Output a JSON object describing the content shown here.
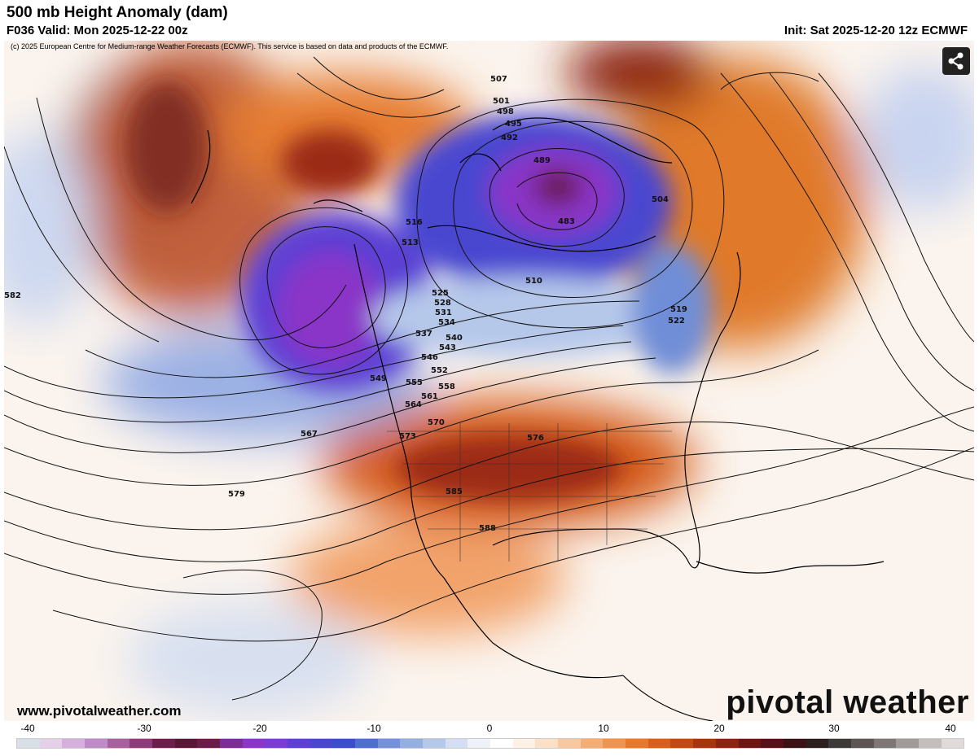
{
  "header": {
    "title": "500 mb Height Anomaly (dam)",
    "valid": "F036 Valid: Mon 2025-12-22 00z",
    "init": "Init: Sat 2025-12-20 12z ECMWF"
  },
  "map": {
    "copyright": "(c) 2025 European Centre for Medium-range Weather Forecasts (ECMWF). This service is based on data and products of the ECMWF.",
    "website": "www.pivotalweather.com",
    "brand": "pivotal weather",
    "share_icon": "share-icon",
    "contour_labels": [
      "483",
      "489",
      "492",
      "495",
      "498",
      "501",
      "504",
      "507",
      "510",
      "513",
      "516",
      "519",
      "522",
      "525",
      "528",
      "531",
      "534",
      "537",
      "540",
      "543",
      "546",
      "549",
      "552",
      "555",
      "558",
      "561",
      "564",
      "567",
      "570",
      "573",
      "576",
      "579",
      "582",
      "585",
      "588"
    ],
    "colors": {
      "strong_negative": "#7a2fd0",
      "negative": "#3b4fd4",
      "weak_negative": "#c9d4f0",
      "weak_positive": "#fbe3cc",
      "positive": "#e0782a",
      "strong_positive": "#9b2b12"
    }
  },
  "colorbar": {
    "ticks": [
      "-40",
      "-30",
      "-20",
      "-10",
      "0",
      "10",
      "20",
      "30",
      "40"
    ],
    "colors": [
      "#d9dfe6",
      "#e6cfe8",
      "#d5b0dc",
      "#c08ac8",
      "#a8609f",
      "#8c3d7a",
      "#6b1f4a",
      "#5a1636",
      "#6b1d4a",
      "#7c2d96",
      "#8a35c8",
      "#7a3ad6",
      "#5d3fd6",
      "#4a46d0",
      "#3a4dcc",
      "#4f6fd0",
      "#7592d8",
      "#94afe2",
      "#b6c8ea",
      "#d3def2",
      "#eef2f8",
      "#ffffff",
      "#fdf1e6",
      "#fbdfc6",
      "#f8c9a0",
      "#f4ae75",
      "#ef9350",
      "#e8782c",
      "#d85f1c",
      "#c44a14",
      "#a83510",
      "#8c2410",
      "#6e1612",
      "#551018",
      "#3c1216",
      "#2e1f1f",
      "#3f3a3a",
      "#5e5656",
      "#7f7777",
      "#a09a9a",
      "#c4bdbd",
      "#e0dada"
    ]
  }
}
